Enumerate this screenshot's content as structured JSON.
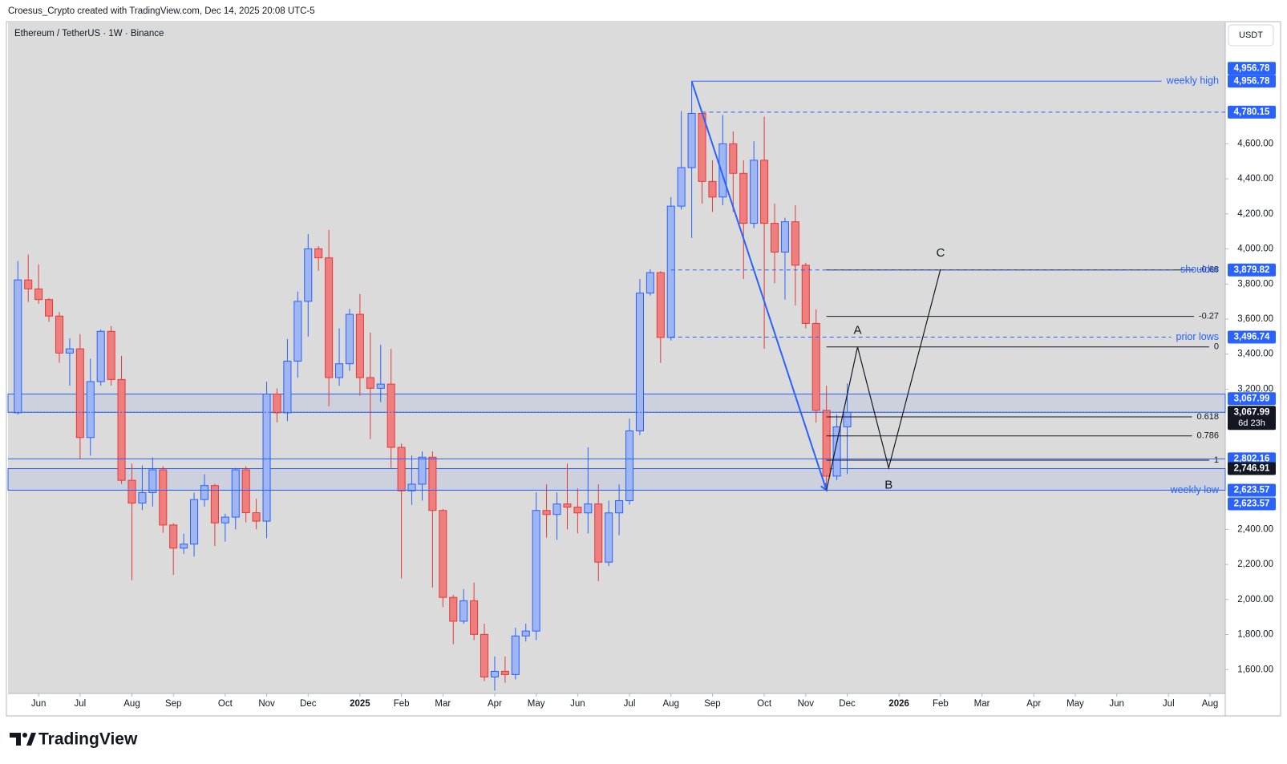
{
  "chart_data": {
    "type": "candlestick",
    "header": "Croesus_Crypto created with TradingView.com, Dec 14, 2025 20:08 UTC-5",
    "title": "Ethereum / TetherUS · 1W · Binance",
    "currency": "USDT",
    "brand": "TradingView",
    "up_color": "#2962ff",
    "up_fill": "#9fb6f2",
    "down_color": "#e53935",
    "down_fill": "#ef7f7f",
    "open": [
      3065,
      3823,
      3772,
      3711,
      3617,
      3406,
      3430,
      2924,
      3243,
      3530,
      3255,
      2680,
      2550,
      2610,
      2740,
      2425,
      2293,
      2316,
      2570,
      2650,
      2437,
      2470,
      2740,
      2495,
      2447,
      3172,
      3065,
      3360,
      3701,
      4001,
      3949,
      3266,
      3345,
      3627,
      3266,
      3205,
      3229,
      2868,
      2620,
      2658,
      2812,
      2508,
      2012,
      1876,
      1993,
      1801,
      1558,
      1590,
      1572,
      1792,
      1820,
      2508,
      2485,
      2545,
      2527,
      2494,
      2545,
      2213,
      2494,
      2564,
      2962,
      3748,
      3865,
      3495,
      4244,
      4464,
      4773,
      4385,
      4296,
      4600,
      4431,
      4146,
      4506,
      4146,
      3982,
      4155,
      3907,
      3575,
      3079,
      2704,
      2985
    ],
    "high": [
      3931,
      3968,
      3912,
      3720,
      3640,
      3490,
      3514,
      3374,
      3540,
      3560,
      3390,
      2775,
      2765,
      2810,
      2760,
      2435,
      2375,
      2610,
      2715,
      2660,
      2490,
      2750,
      2760,
      2575,
      3242,
      3205,
      3486,
      3757,
      4085,
      4015,
      4108,
      3547,
      3659,
      3743,
      3523,
      3453,
      3430,
      2890,
      2822,
      2845,
      2845,
      2517,
      2026,
      2059,
      2096,
      1862,
      1675,
      1675,
      1839,
      1862,
      2611,
      2657,
      2611,
      2775,
      2634,
      2868,
      2657,
      2564,
      2657,
      3032,
      3828,
      3884,
      3874,
      4296,
      4787,
      4956.78,
      4787,
      4506,
      4764,
      4670,
      4506,
      4614,
      4754,
      4258,
      4178,
      4249,
      3921,
      3655,
      3219,
      3055,
      3233
    ],
    "low": [
      3055,
      3697,
      3687,
      3584,
      3350,
      3220,
      2800,
      2820,
      3220,
      3220,
      2660,
      2110,
      2510,
      2530,
      2380,
      2140,
      2260,
      2245,
      2530,
      2305,
      2330,
      2400,
      2440,
      2400,
      2350,
      3010,
      3018,
      3265,
      3500,
      3875,
      3102,
      3219,
      3304,
      3163,
      2915,
      3126,
      2751,
      2120,
      2540,
      2564,
      2068,
      1956,
      1745,
      1862,
      1768,
      1534,
      1480,
      1525,
      1544,
      1760,
      1768,
      2353,
      2340,
      2400,
      2377,
      2377,
      2105,
      2190,
      2367,
      2541,
      2938,
      3734,
      3350,
      3477,
      4225,
      4062,
      4258,
      4211,
      4249,
      4211,
      3828,
      4118,
      3430,
      3804,
      3711,
      3678,
      3547,
      3009,
      2623.57,
      2681,
      2716
    ],
    "close": [
      3823,
      3772,
      3711,
      3617,
      3406,
      3430,
      2924,
      3243,
      3530,
      3255,
      2680,
      2550,
      2610,
      2740,
      2425,
      2293,
      2316,
      2570,
      2650,
      2437,
      2470,
      2740,
      2495,
      2447,
      3172,
      3065,
      3360,
      3701,
      4001,
      3949,
      3266,
      3345,
      3627,
      3266,
      3205,
      3229,
      2868,
      2620,
      2658,
      2812,
      2508,
      2012,
      1876,
      1993,
      1801,
      1558,
      1590,
      1572,
      1792,
      1820,
      2508,
      2485,
      2545,
      2527,
      2494,
      2545,
      2213,
      2494,
      2564,
      2962,
      3748,
      3865,
      3495,
      4244,
      4464,
      4773,
      4385,
      4296,
      4600,
      4431,
      4146,
      4506,
      4146,
      3982,
      4155,
      3907,
      3575,
      3079,
      2704,
      2985,
      3067.99
    ],
    "xlim": [
      -0.95,
      116.47
    ],
    "ylim": [
      1464,
      5292
    ],
    "xticks": [
      {
        "value": 2,
        "label": "Jun"
      },
      {
        "value": 6,
        "label": "Jul"
      },
      {
        "value": 11,
        "label": "Aug"
      },
      {
        "value": 15,
        "label": "Sep"
      },
      {
        "value": 20,
        "label": "Oct"
      },
      {
        "value": 24,
        "label": "Nov"
      },
      {
        "value": 28,
        "label": "Dec"
      },
      {
        "value": 33,
        "label": "2025"
      },
      {
        "value": 37,
        "label": "Feb"
      },
      {
        "value": 41,
        "label": "Mar"
      },
      {
        "value": 46,
        "label": "Apr"
      },
      {
        "value": 50,
        "label": "May"
      },
      {
        "value": 54,
        "label": "Jun"
      },
      {
        "value": 59,
        "label": "Jul"
      },
      {
        "value": 63,
        "label": "Aug"
      },
      {
        "value": 67,
        "label": "Sep"
      },
      {
        "value": 72,
        "label": "Oct"
      },
      {
        "value": 76,
        "label": "Nov"
      },
      {
        "value": 80,
        "label": "Dec"
      },
      {
        "value": 85,
        "label": "2026"
      },
      {
        "value": 89,
        "label": "Feb"
      },
      {
        "value": 93,
        "label": "Mar"
      },
      {
        "value": 98,
        "label": "Apr"
      },
      {
        "value": 102,
        "label": "May"
      },
      {
        "value": 106,
        "label": "Jun"
      },
      {
        "value": 111,
        "label": "Jul"
      },
      {
        "value": 115,
        "label": "Aug"
      }
    ],
    "yticks": [
      {
        "value": 1600,
        "label": "1,600.00"
      },
      {
        "value": 1800,
        "label": "1,800.00"
      },
      {
        "value": 2000,
        "label": "2,000.00"
      },
      {
        "value": 2200,
        "label": "2,200.00"
      },
      {
        "value": 2400,
        "label": "2,400.00"
      },
      {
        "value": 3200,
        "label": "3,200.00"
      },
      {
        "value": 3400,
        "label": "3,400.00"
      },
      {
        "value": 3600,
        "label": "3,600.00"
      },
      {
        "value": 3800,
        "label": "3,800.00"
      },
      {
        "value": 4000,
        "label": "4,000.00"
      },
      {
        "value": 4200,
        "label": "4,200.00"
      },
      {
        "value": 4400,
        "label": "4,400.00"
      },
      {
        "value": 4600,
        "label": "4,600.00"
      }
    ],
    "level_color": "#2962ff",
    "levels": [
      {
        "name": "weekly high",
        "value": 4956.78,
        "label": "4,956.78",
        "style": "solid",
        "x_start": 65
      },
      {
        "value": 4780.15,
        "label": "4,780.15",
        "style": "dashed",
        "x_start": 66
      },
      {
        "name": "shoulder",
        "value": 3879.82,
        "label": "3,879.82",
        "style": "dashed",
        "x_start": 63
      },
      {
        "name": "prior lows",
        "value": 3496.74,
        "label": "3,496.74",
        "style": "dashed",
        "x_start": 63
      },
      {
        "value": 3067.99,
        "label": "3,067.99",
        "style": "dotted"
      },
      {
        "value": 2802.16,
        "label": "2,802.16",
        "style": "solid"
      },
      {
        "name": "weekly low",
        "value": 2623.57,
        "label": "2,623.57",
        "style": "solid"
      }
    ],
    "zones": [
      {
        "from": 3067.99,
        "to": 3172
      },
      {
        "from": 2623.57,
        "to": 2746.91
      }
    ],
    "price_labels": [
      {
        "value": 3067.99,
        "label": "3,067.99",
        "countdown": "6d 23h"
      },
      {
        "value": 2746.91,
        "label": "2,746.91"
      }
    ],
    "fib": {
      "x_start": 78,
      "levels": [
        {
          "label": "-0.68",
          "value": 3880
        },
        {
          "label": "-0.27",
          "value": 3615
        },
        {
          "label": "0",
          "value": 3441
        },
        {
          "label": "0.618",
          "value": 3042
        },
        {
          "label": "0.786",
          "value": 2933
        },
        {
          "label": "1",
          "value": 2795
        }
      ]
    },
    "trend": {
      "color": "#2962ff",
      "x": [
        65,
        78
      ],
      "y": [
        4956.78,
        2623.57
      ]
    },
    "pattern": {
      "x": [
        78,
        81,
        84,
        89
      ],
      "y": [
        2623.57,
        3441,
        2751,
        3884
      ],
      "labels": [
        null,
        "A",
        "B",
        "C"
      ]
    }
  }
}
